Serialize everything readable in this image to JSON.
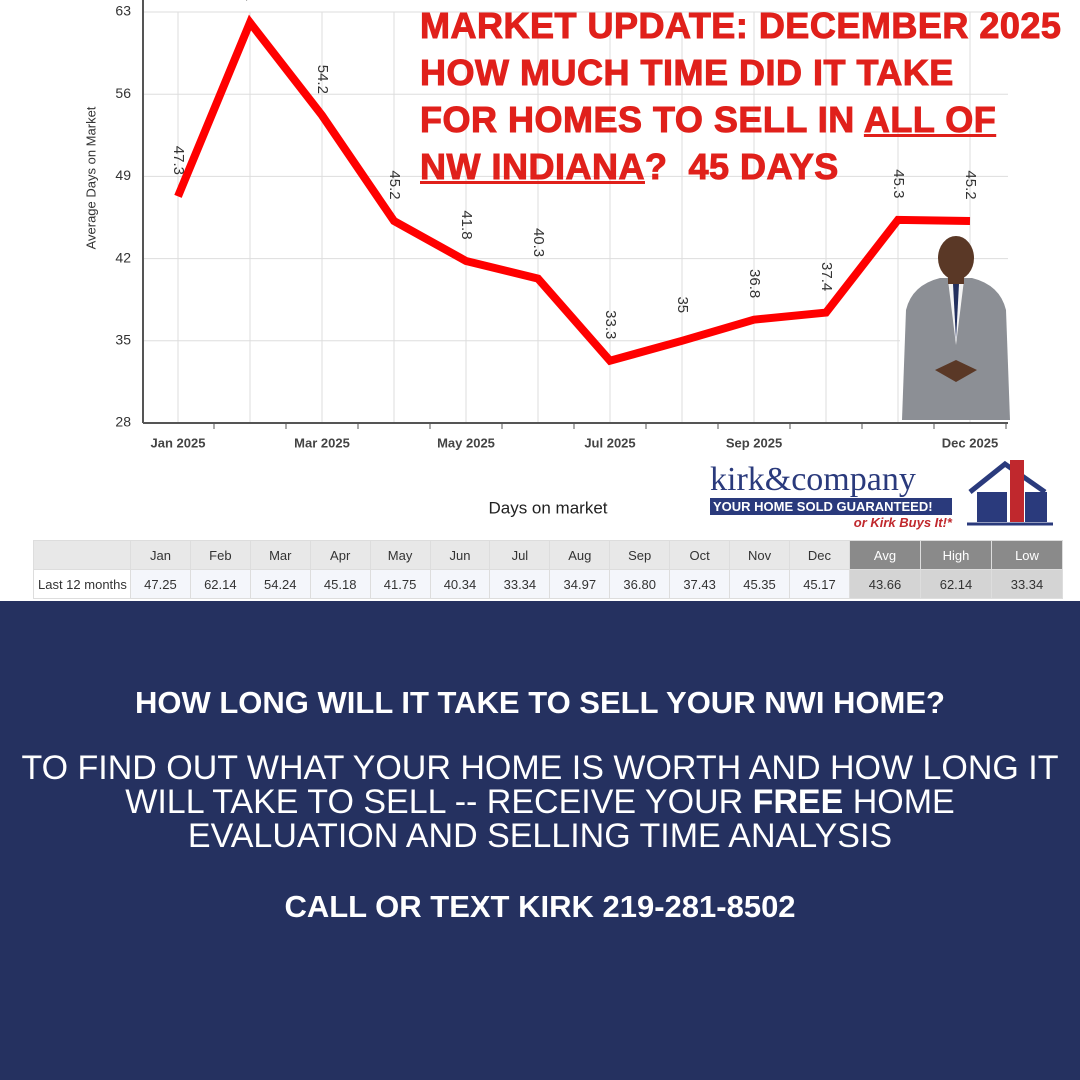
{
  "chart_data": {
    "type": "line",
    "categories": [
      "Jan 2025",
      null,
      "Mar 2025",
      null,
      "May 2025",
      null,
      "Jul 2025",
      null,
      "Sep 2025",
      null,
      null,
      "Dec 2025"
    ],
    "series": [
      {
        "name": "Days on market",
        "color": "#ff0000",
        "values": [
          47.3,
          62.1,
          54.2,
          45.2,
          41.8,
          40.3,
          33.3,
          35,
          36.8,
          37.4,
          45.3,
          45.2
        ]
      }
    ],
    "y_label": "Average Days on Market",
    "x_label": "Days on market",
    "ylim": [
      28,
      63
    ],
    "yticks": [
      28,
      35,
      42,
      49,
      56,
      63
    ],
    "grid": true
  },
  "headline": {
    "line1": "MARKET UPDATE: DECEMBER 2025",
    "line2": "HOW MUCH TIME DID IT TAKE",
    "line3a": "FOR HOMES TO SELL IN",
    "line3b": "ALL OF",
    "line4a": "NW INDIANA",
    "line4b": "?  45 DAYS"
  },
  "logo": {
    "name": "kirk&company",
    "tagline": "YOUR HOME SOLD GUARANTEED!",
    "sub": "or Kirk Buys It!*"
  },
  "table": {
    "columns": [
      "Jan",
      "Feb",
      "Mar",
      "Apr",
      "May",
      "Jun",
      "Jul",
      "Aug",
      "Sep",
      "Oct",
      "Nov",
      "Dec",
      "Avg",
      "High",
      "Low"
    ],
    "row_label": "Last 12 months",
    "row": [
      "47.25",
      "62.14",
      "54.24",
      "45.18",
      "41.75",
      "40.34",
      "33.34",
      "34.97",
      "36.80",
      "37.43",
      "45.35",
      "45.17",
      "43.66",
      "62.14",
      "33.34"
    ]
  },
  "cta": {
    "question": "HOW LONG WILL IT TAKE TO SELL YOUR NWI HOME?",
    "body1": "TO FIND OUT WHAT YOUR HOME IS WORTH AND HOW LONG IT WILL TAKE TO SELL -- RECEIVE YOUR",
    "body_bold": "FREE",
    "body2": "HOME EVALUATION AND SELLING TIME ANALYSIS",
    "call": "CALL OR TEXT KIRK 219-281-8502"
  }
}
